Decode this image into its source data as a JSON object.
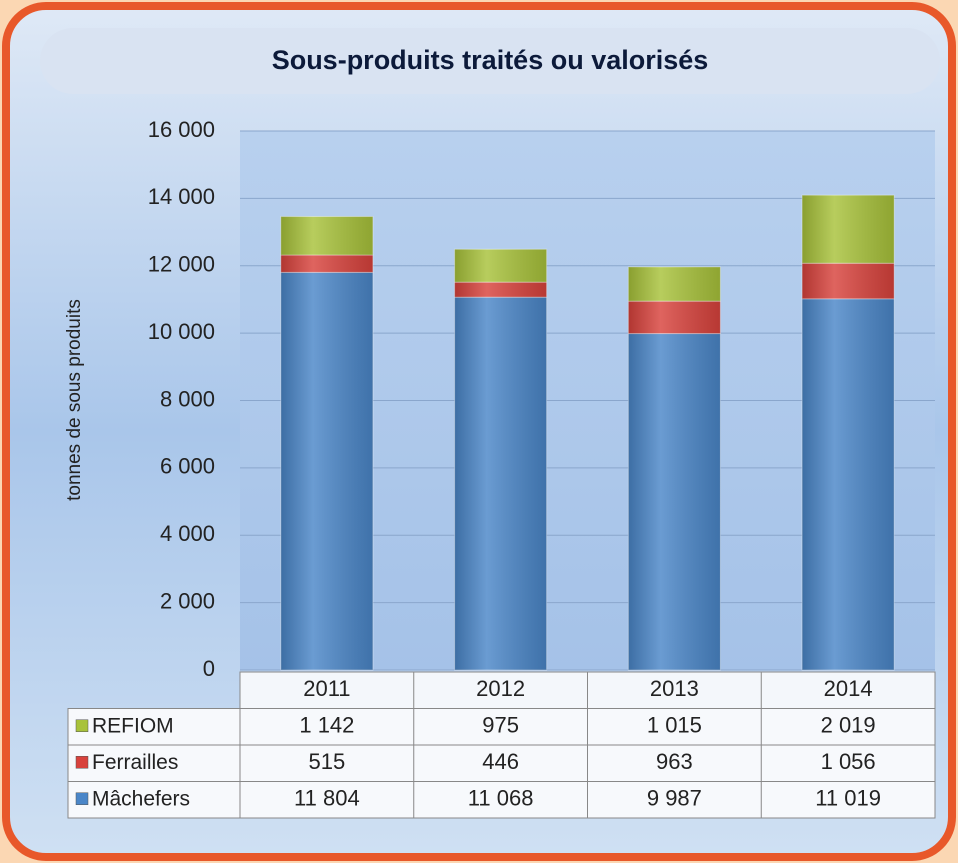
{
  "chart_data": {
    "type": "stacked-bar",
    "title": "Sous-produits traités ou valorisés",
    "y_label": "tonnes de sous produits",
    "categories": [
      "2011",
      "2012",
      "2013",
      "2014"
    ],
    "series": [
      {
        "name": "Mâchefers",
        "color": "#4a86c8",
        "values": [
          11804,
          11068,
          9987,
          11019
        ],
        "value_labels": [
          "11 804",
          "11 068",
          "9 987",
          "11 019"
        ]
      },
      {
        "name": "Ferrailles",
        "color": "#d8423c",
        "values": [
          515,
          446,
          963,
          1056
        ],
        "value_labels": [
          "515",
          "446",
          "963",
          "1 056"
        ]
      },
      {
        "name": "REFIOM",
        "color": "#a8c23a",
        "values": [
          1142,
          975,
          1015,
          2019
        ],
        "value_labels": [
          "1 142",
          "975",
          "1 015",
          "2 019"
        ]
      }
    ],
    "ylim": [
      0,
      16000
    ],
    "yticks": [
      0,
      {
        "value": 2000,
        "label": "2 000"
      },
      {
        "value": 4000,
        "label": "4 000"
      },
      {
        "value": 6000,
        "label": "6 000"
      },
      {
        "value": 8000,
        "label": "8 000"
      },
      {
        "value": 10000,
        "label": "10 000"
      },
      {
        "value": 12000,
        "label": "12 000"
      },
      {
        "value": 14000,
        "label": "14 000"
      },
      {
        "value": 16000,
        "label": "16 000"
      }
    ],
    "grid": true
  }
}
